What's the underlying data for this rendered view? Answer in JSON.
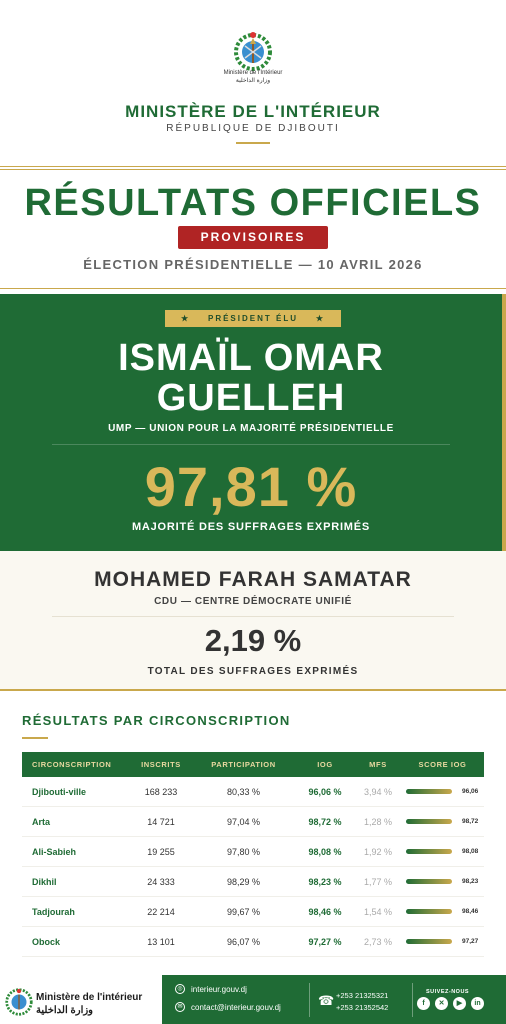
{
  "header": {
    "emblem_fr": "Ministère de l'Intérieur",
    "emblem_ar": "وزارة الداخلية",
    "ministry": "MINISTÈRE DE L'INTÉRIEUR",
    "country": "RÉPUBLIQUE DE DJIBOUTI"
  },
  "results": {
    "title": "RÉSULTATS OFFICIELS",
    "badge": "PROVISOIRES",
    "election": "ÉLECTION PRÉSIDENTIELLE — 10 AVRIL 2026"
  },
  "winner": {
    "badge": "PRÉSIDENT ÉLU",
    "badge_star": "★",
    "name_line1": "ISMAÏL OMAR",
    "name_line2": "GUELLEH",
    "party": "UMP — UNION POUR LA MAJORITÉ PRÉSIDENTIELLE",
    "percent": "97,81 %",
    "percent_label": "MAJORITÉ DES SUFFRAGES EXPRIMÉS"
  },
  "runner_up": {
    "name": "MOHAMED FARAH SAMATAR",
    "party": "CDU — CENTRE DÉMOCRATE UNIFIÉ",
    "percent": "2,19 %",
    "percent_label": "TOTAL DES SUFFRAGES EXPRIMÉS"
  },
  "table": {
    "title": "RÉSULTATS PAR CIRCONSCRIPTION",
    "headers": [
      "CIRCONSCRIPTION",
      "INSCRITS",
      "PARTICIPATION",
      "IOG",
      "MFS",
      "SCORE IOG"
    ],
    "rows": [
      {
        "name": "Djibouti-ville",
        "inscrits": "168 233",
        "participation": "80,33 %",
        "iog": "96,06 %",
        "mfs": "3,94 %",
        "score": "96,06"
      },
      {
        "name": "Arta",
        "inscrits": "14 721",
        "participation": "97,04 %",
        "iog": "98,72 %",
        "mfs": "1,28 %",
        "score": "98,72"
      },
      {
        "name": "Ali-Sabieh",
        "inscrits": "19 255",
        "participation": "97,80 %",
        "iog": "98,08 %",
        "mfs": "1,92 %",
        "score": "98,08"
      },
      {
        "name": "Dikhil",
        "inscrits": "24 333",
        "participation": "98,29 %",
        "iog": "98,23 %",
        "mfs": "1,77 %",
        "score": "98,23"
      },
      {
        "name": "Tadjourah",
        "inscrits": "22 214",
        "participation": "99,67 %",
        "iog": "98,46 %",
        "mfs": "1,54 %",
        "score": "98,46"
      },
      {
        "name": "Obock",
        "inscrits": "13 101",
        "participation": "96,07 %",
        "iog": "97,27 %",
        "mfs": "2,73 %",
        "score": "97,27"
      }
    ]
  },
  "footer": {
    "ministry_fr": "Ministère de l'intérieur",
    "ministry_ar": "وزارة الداخلية",
    "website": "interieur.gouv.dj",
    "email": "contact@interieur.gouv.dj",
    "phone1": "+253 21325321",
    "phone2": "+253 21352542",
    "follow": "SUIVEZ-NOUS",
    "social_icons": [
      "facebook-icon",
      "x-icon",
      "youtube-icon",
      "linkedin-icon"
    ]
  },
  "colors": {
    "green": "#1f6b35",
    "gold": "#c9a84c",
    "red": "#b02424",
    "cream": "#faf8f1"
  }
}
